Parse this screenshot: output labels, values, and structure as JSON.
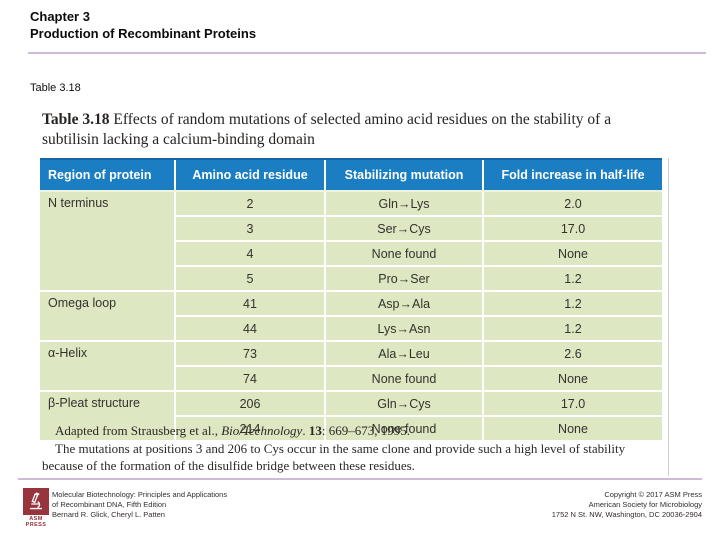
{
  "slide": {
    "header": {
      "line1": "Chapter 3",
      "line2": "Production of Recombinant Proteins"
    },
    "table_label": "Table 3.18"
  },
  "figure": {
    "title_bold": "Table 3.18",
    "title_rest": " Effects of random mutations of selected amino acid residues on the stability of a subtilisin lacking a calcium-binding domain",
    "columns": [
      "Region of protein",
      "Amino acid residue",
      "Stabilizing mutation",
      "Fold increase in half-life"
    ],
    "groups": [
      {
        "region": "N terminus",
        "rows": [
          [
            "2",
            "Gln→Lys",
            "2.0"
          ],
          [
            "3",
            "Ser→Cys",
            "17.0"
          ],
          [
            "4",
            "None found",
            "None"
          ],
          [
            "5",
            "Pro→Ser",
            "1.2"
          ]
        ]
      },
      {
        "region": "Omega loop",
        "rows": [
          [
            "41",
            "Asp→Ala",
            "1.2"
          ],
          [
            "44",
            "Lys→Asn",
            "1.2"
          ]
        ]
      },
      {
        "region": "α-Helix",
        "rows": [
          [
            "73",
            "Ala→Leu",
            "2.6"
          ],
          [
            "74",
            "None found",
            "None"
          ]
        ]
      },
      {
        "region": "β-Pleat structure",
        "rows": [
          [
            "206",
            "Gln→Cys",
            "17.0"
          ],
          [
            "214",
            "None found",
            "None"
          ]
        ]
      }
    ],
    "footnote1": {
      "prefix": "Adapted from Strausberg et al., ",
      "journal": "Bio/Technology",
      "mid": ". ",
      "volume": "13",
      "suffix": ": 669–673, 1995."
    },
    "footnote2": "The mutations at positions 3 and 206 to Cys occur in the same clone and provide such a high level of stability because of the formation of the disulfide bridge between these residues."
  },
  "footer": {
    "logo_caption": "ASM\nPRESS",
    "book": {
      "line1": "Molecular Biotechnology: Principles and Applications",
      "line2": "of Recombinant DNA, Fifth Edition",
      "line3": "Bernard R. Glick, Cheryl L. Patten"
    },
    "copyright": {
      "line1": "Copyright © 2017 ASM Press",
      "line2": "American Society for Microbiology",
      "line3": "1752 N St. NW, Washington, DC 20036-2904"
    }
  },
  "colors": {
    "table_header_blue": "#1b7ec2",
    "table_header_top_rule": "#1566a4",
    "table_body_green": "#dde7c2",
    "divider_lavender": "#cdbbda",
    "asm_maroon": "#97343c"
  }
}
